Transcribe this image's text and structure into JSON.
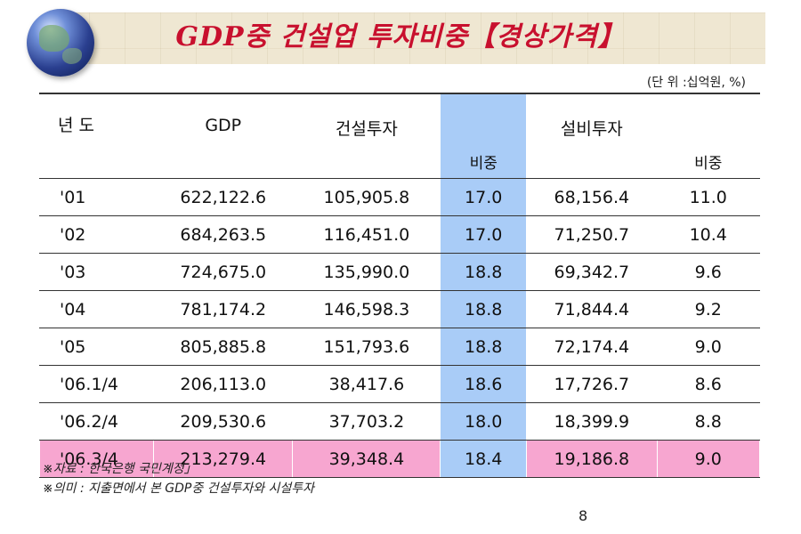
{
  "title": "GDP중 건설업 투자비중【경상가격】",
  "unit": "(단 위 :십억원, %)",
  "headers": {
    "year": "년 도",
    "gdp": "GDP",
    "construction": "건설투자",
    "ratio1": "비중",
    "facility": "설비투자",
    "ratio2": "비중"
  },
  "rows": [
    {
      "year": "'01",
      "gdp": "622,122.6",
      "construction": "105,905.8",
      "ratio1": "17.0",
      "facility": "68,156.4",
      "ratio2": "11.0"
    },
    {
      "year": "'02",
      "gdp": "684,263.5",
      "construction": "116,451.0",
      "ratio1": "17.0",
      "facility": "71,250.7",
      "ratio2": "10.4"
    },
    {
      "year": "'03",
      "gdp": "724,675.0",
      "construction": "135,990.0",
      "ratio1": "18.8",
      "facility": "69,342.7",
      "ratio2": "9.6"
    },
    {
      "year": "'04",
      "gdp": "781,174.2",
      "construction": "146,598.3",
      "ratio1": "18.8",
      "facility": "71,844.4",
      "ratio2": "9.2"
    },
    {
      "year": "'05",
      "gdp": "805,885.8",
      "construction": "151,793.6",
      "ratio1": "18.8",
      "facility": "72,174.4",
      "ratio2": "9.0"
    },
    {
      "year": "'06.1/4",
      "gdp": "206,113.0",
      "construction": "38,417.6",
      "ratio1": "18.6",
      "facility": "17,726.7",
      "ratio2": "8.6"
    },
    {
      "year": "'06.2/4",
      "gdp": "209,530.6",
      "construction": "37,703.2",
      "ratio1": "18.0",
      "facility": "18,399.9",
      "ratio2": "8.8"
    },
    {
      "year": "'06.3/4",
      "gdp": "213,279.4",
      "construction": "39,348.4",
      "ratio1": "18.4",
      "facility": "19,186.8",
      "ratio2": "9.0"
    }
  ],
  "notes": [
    "※자료 : 한국은행 국민계정」",
    "※의미 : 지출면에서 본 GDP중 건설투자와 시설투자"
  ],
  "page_number": "8",
  "colors": {
    "title": "#c8102e",
    "ratio_column": "#a9ccf7",
    "highlight_row": "#f7a6d0"
  }
}
